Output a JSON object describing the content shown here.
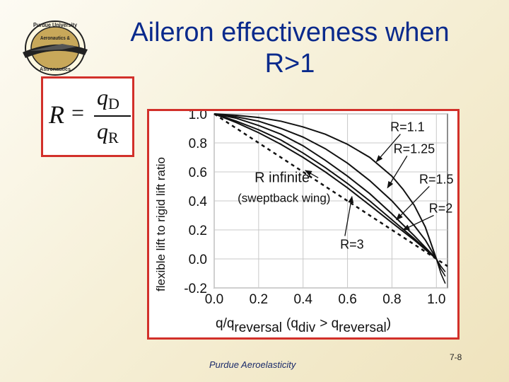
{
  "slide": {
    "title_line1": "Aileron effectiveness when",
    "title_line2": "R>1",
    "footer": "Purdue Aeroelasticity",
    "page_number": "7-8"
  },
  "formula": {
    "lhs": "R",
    "equals": "=",
    "numerator_var": "q",
    "numerator_sub": "D",
    "denominator_var": "q",
    "denominator_sub": "R"
  },
  "logo": {
    "top_text": "Purdue University",
    "middle_text": "Aeronautics &",
    "bottom_text": "Astronautics"
  },
  "colors": {
    "title": "#0a2a8c",
    "frame": "#d2302a",
    "curves": "#111111"
  },
  "chart_data": {
    "type": "line",
    "ylabel": "flexible lift to rigid lift ratio",
    "xlabel_parts": {
      "t1": "q/q",
      "t1_sub": "reversal",
      "t2": "(q",
      "t2_sub": "div",
      "t3": "> q",
      "t3_sub": "reversal",
      "t4": ")"
    },
    "xlim": [
      0,
      1.05
    ],
    "ylim": [
      -0.2,
      1.0
    ],
    "xticks": [
      "0.0",
      "0.2",
      "0.4",
      "0.6",
      "0.8",
      "1.0"
    ],
    "yticks": [
      "1.0",
      "0.8",
      "0.6",
      "0.4",
      "0.2",
      "0.0",
      "-0.2"
    ],
    "xtick_values": [
      0,
      0.2,
      0.4,
      0.6,
      0.8,
      1.0
    ],
    "ytick_values": [
      1.0,
      0.8,
      0.6,
      0.4,
      0.2,
      0.0,
      -0.2
    ],
    "grid": true,
    "series": [
      {
        "name": "R=1.1",
        "style": "solid",
        "x": [
          0,
          0.1,
          0.2,
          0.3,
          0.4,
          0.5,
          0.6,
          0.7,
          0.8,
          0.85,
          0.9,
          0.95,
          1.0
        ],
        "y": [
          1.0,
          0.99,
          0.975,
          0.95,
          0.91,
          0.86,
          0.79,
          0.7,
          0.57,
          0.48,
          0.37,
          0.22,
          0.0
        ]
      },
      {
        "name": "R=1.25",
        "style": "solid",
        "x": [
          0,
          0.1,
          0.2,
          0.3,
          0.4,
          0.5,
          0.6,
          0.7,
          0.8,
          0.9,
          0.95,
          1.0
        ],
        "y": [
          1.0,
          0.98,
          0.95,
          0.9,
          0.84,
          0.76,
          0.66,
          0.54,
          0.4,
          0.23,
          0.13,
          0.0
        ]
      },
      {
        "name": "R=1.5",
        "style": "solid",
        "x": [
          0,
          0.1,
          0.2,
          0.3,
          0.4,
          0.5,
          0.6,
          0.7,
          0.8,
          0.9,
          1.0
        ],
        "y": [
          1.0,
          0.97,
          0.92,
          0.86,
          0.78,
          0.68,
          0.57,
          0.45,
          0.31,
          0.16,
          0.0
        ]
      },
      {
        "name": "R=2",
        "style": "solid",
        "x": [
          0,
          0.1,
          0.2,
          0.3,
          0.4,
          0.5,
          0.6,
          0.7,
          0.8,
          0.9,
          1.0
        ],
        "y": [
          1.0,
          0.95,
          0.89,
          0.82,
          0.73,
          0.63,
          0.52,
          0.4,
          0.27,
          0.14,
          0.0
        ]
      },
      {
        "name": "R=3",
        "style": "solid",
        "x": [
          0,
          0.1,
          0.2,
          0.3,
          0.4,
          0.5,
          0.6,
          0.7,
          0.8,
          0.9,
          1.0
        ],
        "y": [
          1.0,
          0.94,
          0.87,
          0.79,
          0.7,
          0.6,
          0.49,
          0.37,
          0.25,
          0.13,
          0.0
        ]
      },
      {
        "name": "R infinite",
        "style": "dashed",
        "x": [
          0,
          0.2,
          0.4,
          0.6,
          0.8,
          1.0,
          1.05
        ],
        "y": [
          1.0,
          0.8,
          0.6,
          0.4,
          0.2,
          0.0,
          -0.05
        ]
      }
    ],
    "extra_curves": [
      {
        "x": [
          1.0,
          1.02,
          1.04
        ],
        "y": [
          0.0,
          -0.07,
          -0.12
        ]
      },
      {
        "x": [
          1.0,
          1.02,
          1.04
        ],
        "y": [
          0.0,
          -0.1,
          -0.17
        ]
      },
      {
        "x": [
          1.0,
          1.02,
          1.04
        ],
        "y": [
          0.0,
          -0.05,
          -0.09
        ]
      }
    ],
    "annotations": [
      {
        "text": "R=1.1",
        "pos": [
          0.87,
          0.88
        ],
        "arrow_to": [
          0.73,
          0.67
        ]
      },
      {
        "text": "R=1.25",
        "pos": [
          0.9,
          0.73
        ],
        "arrow_to": [
          0.78,
          0.49
        ]
      },
      {
        "text": "R=1.5",
        "pos": [
          1.0,
          0.52
        ],
        "arrow_to": [
          0.82,
          0.27
        ]
      },
      {
        "text": "R=2",
        "pos": [
          1.02,
          0.32
        ],
        "arrow_to": [
          0.85,
          0.2
        ]
      },
      {
        "text": "R=3",
        "pos": [
          0.62,
          0.07
        ],
        "arrow_to": [
          0.62,
          0.43
        ]
      }
    ],
    "infinite_label": {
      "line1": "R infinite",
      "line2": "(sweptback wing)",
      "pos": [
        0.15,
        0.53
      ],
      "arrow_to": [
        0.41,
        0.61
      ]
    }
  }
}
